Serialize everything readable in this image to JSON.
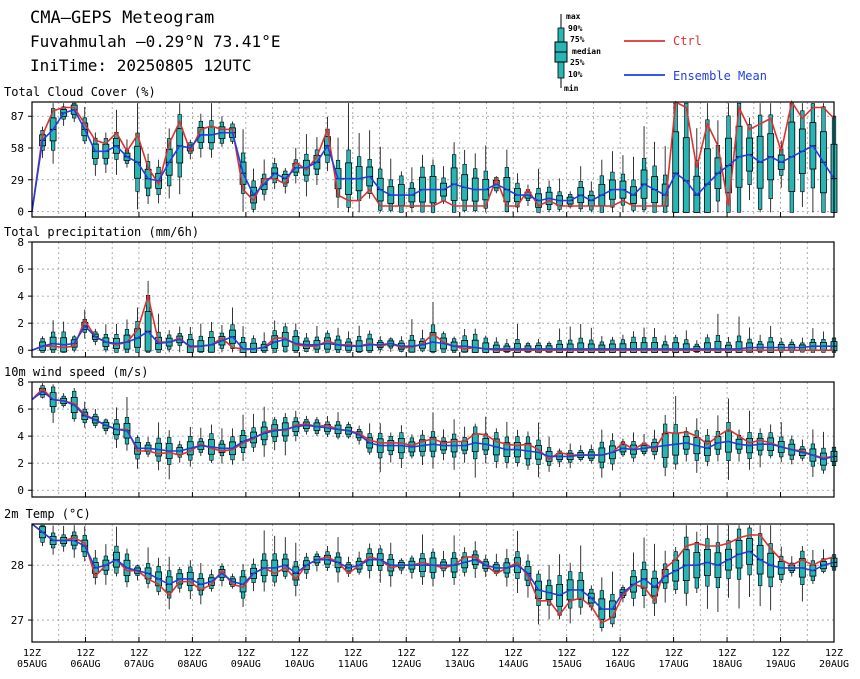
{
  "header": {
    "title": "CMA–GEPS Meteogram",
    "location": "Fuvahmulah –0.29°N 73.41°E",
    "init_time": "IniTime: 20250805 12UTC"
  },
  "legend": {
    "box_labels": [
      "max",
      "90%",
      "75%",
      "median",
      "25%",
      "10%",
      "min"
    ],
    "ctrl": "Ctrl",
    "mean": "Ensemble Mean",
    "ctrl_color": "#e03030",
    "mean_color": "#1f3fe0",
    "box_color": "#2ab5b5"
  },
  "x_ticks": [
    {
      "top": "12Z",
      "bottom": "05AUG"
    },
    {
      "top": "12Z",
      "bottom": "06AUG"
    },
    {
      "top": "12Z",
      "bottom": "07AUG"
    },
    {
      "top": "12Z",
      "bottom": "08AUG"
    },
    {
      "top": "12Z",
      "bottom": "09AUG"
    },
    {
      "top": "12Z",
      "bottom": "10AUG"
    },
    {
      "top": "12Z",
      "bottom": "11AUG"
    },
    {
      "top": "12Z",
      "bottom": "12AUG"
    },
    {
      "top": "12Z",
      "bottom": "13AUG"
    },
    {
      "top": "12Z",
      "bottom": "14AUG"
    },
    {
      "top": "12Z",
      "bottom": "15AUG"
    },
    {
      "top": "12Z",
      "bottom": "16AUG"
    },
    {
      "top": "12Z",
      "bottom": "17AUG"
    },
    {
      "top": "12Z",
      "bottom": "18AUG"
    },
    {
      "top": "12Z",
      "bottom": "19AUG"
    },
    {
      "top": "12Z",
      "bottom": "20AUG"
    }
  ],
  "chart_data": [
    {
      "type": "boxplot+line",
      "title": "Total Cloud Cover (%)",
      "ylim": [
        -5,
        100
      ],
      "yticks": [
        0,
        29,
        58,
        87
      ],
      "grid": true,
      "ctrl": [
        0,
        70,
        92,
        95,
        95,
        80,
        65,
        62,
        72,
        55,
        70,
        40,
        25,
        62,
        82,
        55,
        75,
        78,
        75,
        75,
        20,
        10,
        30,
        30,
        25,
        45,
        38,
        50,
        75,
        15,
        10,
        10,
        20,
        5,
        5,
        5,
        5,
        5,
        5,
        10,
        5,
        5,
        5,
        5,
        30,
        5,
        5,
        20,
        5,
        10,
        5,
        5,
        5,
        5,
        5,
        5,
        10,
        5,
        5,
        5,
        5,
        100,
        95,
        40,
        80,
        60,
        5,
        95,
        75,
        80,
        85,
        55,
        100,
        85,
        95,
        95,
        85
      ],
      "mean": [
        0,
        65,
        75,
        90,
        93,
        75,
        55,
        55,
        60,
        50,
        45,
        30,
        28,
        45,
        60,
        58,
        70,
        70,
        72,
        72,
        35,
        15,
        25,
        35,
        30,
        40,
        40,
        45,
        60,
        30,
        30,
        30,
        32,
        20,
        15,
        15,
        15,
        20,
        20,
        20,
        25,
        22,
        20,
        20,
        25,
        20,
        15,
        15,
        10,
        12,
        10,
        10,
        15,
        10,
        15,
        20,
        20,
        15,
        25,
        20,
        15,
        35,
        28,
        15,
        25,
        35,
        42,
        50,
        52,
        45,
        50,
        45,
        50,
        55,
        60,
        45,
        30
      ]
    },
    {
      "type": "boxplot+line",
      "title": "Total precipitation (mm/6h)",
      "ylim": [
        -0.5,
        8
      ],
      "yticks": [
        0,
        2,
        4,
        6,
        8
      ],
      "grid": true,
      "ctrl": [
        0,
        0.3,
        0.3,
        0.2,
        0.3,
        2.2,
        1.0,
        0.6,
        0.4,
        0.6,
        1.5,
        4.0,
        0.6,
        0.6,
        0.9,
        0.2,
        0.3,
        0.4,
        0.9,
        0.2,
        0.1,
        0.1,
        0.2,
        0.9,
        0.9,
        0.4,
        0.3,
        0.3,
        0.7,
        0.4,
        0.4,
        0.3,
        0.5,
        0.3,
        0.5,
        0.2,
        0.2,
        0.5,
        1.2,
        0.6,
        0.3,
        0.1,
        0.2,
        0.1,
        0,
        0,
        0,
        0,
        0,
        0,
        0,
        0,
        0,
        0,
        0,
        0,
        0,
        0,
        0,
        0,
        0,
        0,
        0,
        0,
        0,
        0,
        0,
        0,
        0,
        0,
        0,
        0,
        0,
        0,
        0,
        0,
        0
      ],
      "mean": [
        0,
        0.3,
        0.5,
        0.4,
        0.5,
        1.8,
        1.0,
        0.6,
        0.5,
        0.6,
        0.9,
        1.4,
        0.5,
        0.6,
        0.8,
        0.3,
        0.3,
        0.4,
        0.7,
        1.0,
        0.1,
        0.1,
        0.2,
        0.6,
        0.8,
        0.5,
        0.4,
        0.4,
        0.5,
        0.4,
        0.3,
        0.3,
        0.4,
        0.4,
        0.5,
        0.3,
        0.3,
        0.4,
        0.6,
        0.5,
        0.3,
        0.3,
        0.2,
        0.1,
        0.1,
        0.1,
        0.1,
        0.1,
        0.1,
        0.1,
        0.1,
        0.1,
        0.1,
        0.1,
        0.1,
        0.1,
        0.1,
        0.1,
        0.1,
        0.1,
        0.1,
        0.1,
        0.1,
        0.1,
        0.1,
        0.1,
        0.1,
        0.1,
        0.2,
        0.2,
        0.2,
        0.2,
        0.2,
        0.2,
        0.3,
        0.3,
        0.3
      ]
    },
    {
      "type": "boxplot+line",
      "title": "10m wind speed (m/s)",
      "ylim": [
        -0.5,
        8
      ],
      "yticks": [
        0,
        2,
        4,
        6,
        8
      ],
      "grid": true,
      "ctrl": [
        6.7,
        7.5,
        6.7,
        6.6,
        6.4,
        5.6,
        5.2,
        4.8,
        4.5,
        4.5,
        2.9,
        2.9,
        2.7,
        2.8,
        2.6,
        2.9,
        3.4,
        3.1,
        2.9,
        3.0,
        3.5,
        3.8,
        4.3,
        4.5,
        4.4,
        4.8,
        4.9,
        4.7,
        4.8,
        4.5,
        4.4,
        4.2,
        3.7,
        3.5,
        3.5,
        3.5,
        3.3,
        3.6,
        3.8,
        3.5,
        3.6,
        3.6,
        4.2,
        4.1,
        3.6,
        3.4,
        3.3,
        3.4,
        3.0,
        2.3,
        2.8,
        2.6,
        2.6,
        2.6,
        2.6,
        2.8,
        3.5,
        3.0,
        3.5,
        3.0,
        4.3,
        4.2,
        4.3,
        4.0,
        3.4,
        4.0,
        4.5,
        4.0,
        3.5,
        3.7,
        3.5,
        3.2,
        3.0,
        2.9,
        2.6,
        2.4,
        2.5
      ],
      "mean": [
        6.7,
        7.3,
        6.7,
        6.6,
        6.3,
        5.5,
        5.2,
        4.8,
        4.5,
        4.4,
        3.1,
        3.1,
        3.0,
        2.9,
        2.9,
        3.1,
        3.3,
        3.2,
        3.1,
        3.1,
        3.6,
        3.9,
        4.2,
        4.4,
        4.5,
        4.7,
        4.8,
        4.7,
        4.6,
        4.5,
        4.4,
        4.1,
        3.5,
        3.3,
        3.3,
        3.3,
        3.2,
        3.3,
        3.4,
        3.3,
        3.3,
        3.3,
        3.5,
        3.4,
        3.2,
        3.0,
        3.0,
        2.9,
        2.8,
        2.5,
        2.5,
        2.5,
        2.6,
        2.6,
        2.6,
        2.8,
        3.1,
        3.0,
        3.1,
        3.2,
        3.3,
        3.4,
        3.5,
        3.3,
        3.1,
        3.5,
        3.6,
        3.4,
        3.3,
        3.4,
        3.4,
        3.2,
        3.0,
        2.8,
        2.6,
        2.3,
        2.5
      ]
    },
    {
      "type": "boxplot+line",
      "title": "2m Temp (°C)",
      "ylim": [
        26.6,
        28.75
      ],
      "yticks": [
        27,
        28
      ],
      "grid": true,
      "ctrl": [
        28.75,
        28.6,
        28.45,
        28.45,
        28.5,
        28.4,
        27.8,
        28.0,
        28.1,
        27.9,
        27.9,
        27.75,
        27.65,
        27.45,
        27.7,
        27.7,
        27.55,
        27.65,
        27.9,
        27.65,
        27.6,
        27.85,
        27.95,
        27.85,
        27.95,
        27.75,
        28.0,
        28.1,
        28.15,
        28.05,
        27.85,
        28.0,
        28.15,
        28.1,
        27.95,
        28.0,
        28.0,
        28.05,
        28.0,
        27.95,
        28.0,
        28.15,
        28.15,
        28.0,
        27.85,
        27.95,
        28.05,
        27.8,
        27.35,
        27.35,
        27.1,
        27.35,
        27.4,
        27.25,
        26.95,
        27.05,
        27.45,
        27.65,
        27.6,
        27.35,
        27.95,
        28.1,
        28.35,
        28.4,
        28.35,
        28.35,
        28.4,
        28.5,
        28.55,
        28.55,
        28.3,
        28.1,
        28.0,
        28.1,
        28.0,
        28.1,
        28.15
      ],
      "mean": [
        28.75,
        28.6,
        28.45,
        28.45,
        28.45,
        28.35,
        27.95,
        28.0,
        28.1,
        27.95,
        27.9,
        27.85,
        27.75,
        27.65,
        27.75,
        27.75,
        27.65,
        27.7,
        27.85,
        27.7,
        27.65,
        27.85,
        27.95,
        27.95,
        28.0,
        27.85,
        28.0,
        28.1,
        28.1,
        28.05,
        27.95,
        28.0,
        28.1,
        28.1,
        28.0,
        28.0,
        28.0,
        28.0,
        28.0,
        28.0,
        28.0,
        28.05,
        28.1,
        28.0,
        27.95,
        27.95,
        28.0,
        27.85,
        27.55,
        27.5,
        27.45,
        27.55,
        27.55,
        27.4,
        27.2,
        27.2,
        27.5,
        27.65,
        27.75,
        27.6,
        27.8,
        27.9,
        28.0,
        28.0,
        28.05,
        28.0,
        28.1,
        28.2,
        28.25,
        28.1,
        28.0,
        27.95,
        27.95,
        27.95,
        27.9,
        28.0,
        28.05
      ]
    }
  ]
}
